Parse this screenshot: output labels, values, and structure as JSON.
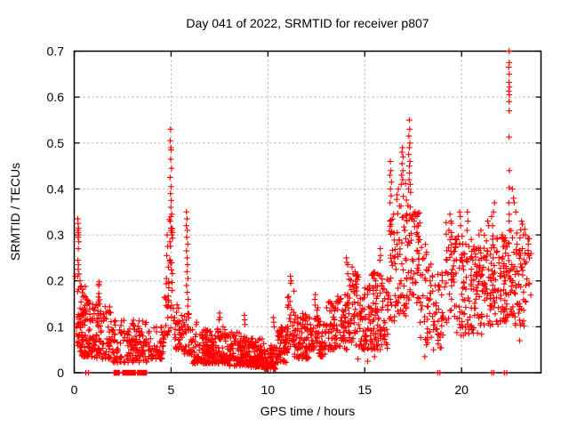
{
  "chart_data": {
    "type": "scatter",
    "title": "Day 041 of 2022, SRMTID for receiver p807",
    "xlabel": "GPS time / hours",
    "ylabel": "SRMTID / TECUs",
    "xlim": [
      0,
      24.1
    ],
    "ylim": [
      0,
      0.7
    ],
    "xticks": [
      {
        "v": 0,
        "label": "0"
      },
      {
        "v": 5,
        "label": "5"
      },
      {
        "v": 10,
        "label": "10"
      },
      {
        "v": 15,
        "label": "15"
      },
      {
        "v": 20,
        "label": "20"
      }
    ],
    "yticks": [
      {
        "v": 0,
        "label": "0"
      },
      {
        "v": 0.1,
        "label": "0.1"
      },
      {
        "v": 0.2,
        "label": "0.2"
      },
      {
        "v": 0.3,
        "label": "0.3"
      },
      {
        "v": 0.4,
        "label": "0.4"
      },
      {
        "v": 0.5,
        "label": "0.5"
      },
      {
        "v": 0.6,
        "label": "0.6"
      },
      {
        "v": 0.7,
        "label": "0.7"
      }
    ],
    "grid": true,
    "legend": "none",
    "marker": {
      "glyph": "+",
      "color": "#ff0000",
      "size": 7
    },
    "colors": {
      "points": "#ff0000",
      "border": "#000000",
      "grid": "#aaaaaa",
      "background": "#ffffff",
      "text": "#000000"
    },
    "series": [
      {
        "name": "SRMTID",
        "points": [
          [
            0.18,
            0.335
          ],
          [
            0.2,
            0.325
          ],
          [
            0.22,
            0.315
          ],
          [
            0.19,
            0.31
          ],
          [
            0.21,
            0.305
          ],
          [
            0.23,
            0.3
          ],
          [
            0.2,
            0.295
          ],
          [
            0.24,
            0.285
          ],
          [
            0.21,
            0.27
          ],
          [
            0.19,
            0.245
          ],
          [
            0.22,
            0.235
          ],
          [
            0.2,
            0.225
          ],
          [
            0.25,
            0.215
          ],
          [
            0.17,
            0.21
          ],
          [
            0.3,
            0.2
          ],
          [
            0.05,
            0.21
          ],
          [
            4.8,
            0.3
          ],
          [
            4.83,
            0.275
          ],
          [
            4.78,
            0.255
          ],
          [
            4.86,
            0.23
          ],
          [
            4.76,
            0.205
          ],
          [
            4.88,
            0.185
          ],
          [
            4.97,
            0.53
          ],
          [
            4.96,
            0.505
          ],
          [
            4.99,
            0.49
          ],
          [
            5.0,
            0.485
          ],
          [
            4.98,
            0.465
          ],
          [
            5.02,
            0.445
          ],
          [
            4.95,
            0.425
          ],
          [
            5.0,
            0.405
          ],
          [
            4.97,
            0.39
          ],
          [
            5.01,
            0.375
          ],
          [
            4.99,
            0.36
          ],
          [
            5.03,
            0.345
          ],
          [
            4.96,
            0.33
          ],
          [
            5.0,
            0.315
          ],
          [
            5.04,
            0.3
          ],
          [
            4.94,
            0.285
          ],
          [
            5.8,
            0.35
          ],
          [
            5.82,
            0.335
          ],
          [
            5.79,
            0.32
          ],
          [
            5.84,
            0.31
          ],
          [
            5.81,
            0.295
          ],
          [
            5.86,
            0.28
          ],
          [
            5.8,
            0.265
          ],
          [
            5.83,
            0.25
          ],
          [
            5.85,
            0.235
          ],
          [
            5.82,
            0.22
          ],
          [
            5.87,
            0.205
          ],
          [
            5.8,
            0.19
          ],
          [
            5.84,
            0.175
          ],
          [
            5.88,
            0.16
          ],
          [
            5.86,
            0.145
          ],
          [
            6.3,
            0.105
          ],
          [
            6.32,
            0.11
          ],
          [
            7.5,
            0.13
          ],
          [
            7.52,
            0.12
          ],
          [
            7.48,
            0.115
          ],
          [
            8.78,
            0.125
          ],
          [
            8.8,
            0.115
          ],
          [
            8.82,
            0.105
          ],
          [
            10.28,
            0.12
          ],
          [
            10.3,
            0.11
          ],
          [
            10.32,
            0.1
          ],
          [
            11.16,
            0.21
          ],
          [
            11.2,
            0.2
          ],
          [
            11.18,
            0.195
          ],
          [
            12.45,
            0.17
          ],
          [
            12.42,
            0.16
          ],
          [
            13.2,
            0.155
          ],
          [
            13.25,
            0.15
          ],
          [
            14.05,
            0.25
          ],
          [
            14.08,
            0.24
          ],
          [
            14.12,
            0.235
          ],
          [
            14.35,
            0.23
          ],
          [
            14.5,
            0.22
          ],
          [
            14.4,
            0.215
          ],
          [
            15.8,
            0.27
          ],
          [
            15.82,
            0.255
          ],
          [
            15.78,
            0.245
          ],
          [
            15.5,
            0.035
          ],
          [
            14.65,
            0.03
          ],
          [
            15.15,
            0.025
          ],
          [
            16.32,
            0.46
          ],
          [
            16.35,
            0.44
          ],
          [
            16.3,
            0.43
          ],
          [
            16.38,
            0.415
          ],
          [
            16.33,
            0.4
          ],
          [
            16.36,
            0.385
          ],
          [
            16.31,
            0.37
          ],
          [
            16.95,
            0.49
          ],
          [
            16.92,
            0.48
          ],
          [
            16.98,
            0.47
          ],
          [
            16.93,
            0.455
          ],
          [
            16.97,
            0.44
          ],
          [
            16.9,
            0.43
          ],
          [
            16.96,
            0.42
          ],
          [
            16.88,
            0.41
          ],
          [
            17.3,
            0.55
          ],
          [
            17.32,
            0.53
          ],
          [
            17.28,
            0.515
          ],
          [
            17.33,
            0.5
          ],
          [
            17.3,
            0.49
          ],
          [
            17.27,
            0.475
          ],
          [
            17.34,
            0.46
          ],
          [
            17.3,
            0.45
          ],
          [
            17.31,
            0.435
          ],
          [
            17.29,
            0.42
          ],
          [
            17.35,
            0.41
          ],
          [
            17.26,
            0.4
          ],
          [
            17.6,
            0.35
          ],
          [
            17.7,
            0.34
          ],
          [
            17.55,
            0.33
          ],
          [
            18.1,
            0.035
          ],
          [
            18.55,
            0.05
          ],
          [
            19.0,
            0.2
          ],
          [
            19.4,
            0.345
          ],
          [
            19.45,
            0.33
          ],
          [
            19.35,
            0.31
          ],
          [
            19.9,
            0.35
          ],
          [
            19.93,
            0.34
          ],
          [
            19.95,
            0.32
          ],
          [
            20.3,
            0.35
          ],
          [
            20.32,
            0.33
          ],
          [
            20.28,
            0.31
          ],
          [
            20.5,
            0.29
          ],
          [
            20.9,
            0.3
          ],
          [
            21.0,
            0.31
          ],
          [
            21.35,
            0.33
          ],
          [
            21.4,
            0.32
          ],
          [
            21.55,
            0.34
          ],
          [
            21.6,
            0.32
          ],
          [
            21.7,
            0.37
          ],
          [
            21.65,
            0.35
          ],
          [
            22.1,
            0.3
          ],
          [
            22.2,
            0.285
          ],
          [
            22.45,
            0.7
          ],
          [
            22.46,
            0.675
          ],
          [
            22.44,
            0.665
          ],
          [
            22.46,
            0.65
          ],
          [
            22.45,
            0.632
          ],
          [
            22.47,
            0.622
          ],
          [
            22.44,
            0.613
          ],
          [
            22.46,
            0.605
          ],
          [
            22.45,
            0.59
          ],
          [
            22.46,
            0.57
          ],
          [
            22.45,
            0.513
          ],
          [
            22.47,
            0.44
          ],
          [
            22.46,
            0.403
          ],
          [
            22.44,
            0.37
          ],
          [
            22.46,
            0.345
          ],
          [
            22.45,
            0.33
          ],
          [
            22.47,
            0.31
          ],
          [
            22.62,
            0.4
          ],
          [
            22.68,
            0.38
          ],
          [
            22.72,
            0.37
          ],
          [
            22.8,
            0.35
          ],
          [
            23.0,
            0.07
          ],
          [
            23.1,
            0.33
          ],
          [
            23.3,
            0.3
          ],
          [
            23.45,
            0.28
          ],
          [
            23.5,
            0.25
          ]
        ],
        "zero_value_runs": [
          {
            "from": 2.05,
            "to": 2.33,
            "step": 0.02
          },
          {
            "from": 2.5,
            "to": 3.17,
            "step": 0.02
          },
          {
            "from": 3.27,
            "to": 3.73,
            "step": 0.02
          }
        ],
        "zero_value_points": [
          0.6,
          0.74,
          18.77,
          18.88,
          21.55,
          21.66,
          22.21,
          22.33
        ],
        "dense_bands": [
          {
            "t0": 0.08,
            "t1": 0.35,
            "lo": 0.05,
            "hi": 0.2,
            "n": 22,
            "skew": 1.3
          },
          {
            "t0": 0.3,
            "t1": 1.0,
            "lo": 0.035,
            "hi": 0.16,
            "n": 100,
            "skew": 1.7
          },
          {
            "t0": 0.35,
            "t1": 0.65,
            "lo": 0.13,
            "hi": 0.19,
            "n": 10,
            "skew": 1.0
          },
          {
            "t0": 1.0,
            "t1": 1.95,
            "lo": 0.03,
            "hi": 0.15,
            "n": 85,
            "skew": 1.6
          },
          {
            "t0": 1.22,
            "t1": 1.38,
            "lo": 0.13,
            "hi": 0.21,
            "n": 10,
            "skew": 1.0
          },
          {
            "t0": 1.95,
            "t1": 3.8,
            "lo": 0.022,
            "hi": 0.115,
            "n": 150,
            "skew": 1.5
          },
          {
            "t0": 3.8,
            "t1": 4.65,
            "lo": 0.03,
            "hi": 0.1,
            "n": 55,
            "skew": 1.5
          },
          {
            "t0": 4.65,
            "t1": 5.1,
            "lo": 0.08,
            "hi": 0.2,
            "n": 28,
            "skew": 1.2
          },
          {
            "t0": 4.9,
            "t1": 5.08,
            "lo": 0.2,
            "hi": 0.34,
            "n": 14,
            "skew": 1.0
          },
          {
            "t0": 5.08,
            "t1": 5.65,
            "lo": 0.05,
            "hi": 0.16,
            "n": 40,
            "skew": 1.4
          },
          {
            "t0": 5.65,
            "t1": 6.05,
            "lo": 0.04,
            "hi": 0.13,
            "n": 35,
            "skew": 1.4
          },
          {
            "t0": 6.05,
            "t1": 7.0,
            "lo": 0.02,
            "hi": 0.095,
            "n": 105,
            "skew": 1.6
          },
          {
            "t0": 7.0,
            "t1": 8.0,
            "lo": 0.02,
            "hi": 0.1,
            "n": 115,
            "skew": 1.6
          },
          {
            "t0": 8.0,
            "t1": 9.0,
            "lo": 0.015,
            "hi": 0.09,
            "n": 115,
            "skew": 1.6
          },
          {
            "t0": 9.0,
            "t1": 9.8,
            "lo": 0.012,
            "hi": 0.075,
            "n": 105,
            "skew": 1.6
          },
          {
            "t0": 9.8,
            "t1": 10.45,
            "lo": 0.008,
            "hi": 0.06,
            "n": 85,
            "skew": 1.5
          },
          {
            "t0": 10.45,
            "t1": 11.0,
            "lo": 0.02,
            "hi": 0.1,
            "n": 65,
            "skew": 1.4
          },
          {
            "t0": 11.0,
            "t1": 11.35,
            "lo": 0.05,
            "hi": 0.18,
            "n": 30,
            "skew": 1.1
          },
          {
            "t0": 11.35,
            "t1": 12.25,
            "lo": 0.03,
            "hi": 0.13,
            "n": 90,
            "skew": 1.4
          },
          {
            "t0": 12.25,
            "t1": 12.6,
            "lo": 0.05,
            "hi": 0.155,
            "n": 32,
            "skew": 1.1
          },
          {
            "t0": 12.6,
            "t1": 13.0,
            "lo": 0.035,
            "hi": 0.12,
            "n": 40,
            "skew": 1.4
          },
          {
            "t0": 13.0,
            "t1": 13.45,
            "lo": 0.05,
            "hi": 0.155,
            "n": 40,
            "skew": 1.2
          },
          {
            "t0": 13.45,
            "t1": 14.1,
            "lo": 0.05,
            "hi": 0.17,
            "n": 55,
            "skew": 1.3
          },
          {
            "t0": 14.1,
            "t1": 14.7,
            "lo": 0.06,
            "hi": 0.22,
            "n": 60,
            "skew": 1.1
          },
          {
            "t0": 14.7,
            "t1": 15.35,
            "lo": 0.05,
            "hi": 0.19,
            "n": 65,
            "skew": 1.3
          },
          {
            "t0": 15.35,
            "t1": 16.2,
            "lo": 0.05,
            "hi": 0.22,
            "n": 90,
            "skew": 1.3
          },
          {
            "t0": 16.2,
            "t1": 16.6,
            "lo": 0.1,
            "hi": 0.36,
            "n": 35,
            "skew": 1.1
          },
          {
            "t0": 16.6,
            "t1": 17.15,
            "lo": 0.12,
            "hi": 0.42,
            "n": 50,
            "skew": 1.1
          },
          {
            "t0": 17.15,
            "t1": 17.45,
            "lo": 0.15,
            "hi": 0.4,
            "n": 28,
            "skew": 1.0
          },
          {
            "t0": 17.45,
            "t1": 17.85,
            "lo": 0.15,
            "hi": 0.36,
            "n": 38,
            "skew": 1.1
          },
          {
            "t0": 17.85,
            "t1": 18.5,
            "lo": 0.06,
            "hi": 0.28,
            "n": 45,
            "skew": 1.25
          },
          {
            "t0": 18.5,
            "t1": 19.2,
            "lo": 0.05,
            "hi": 0.22,
            "n": 40,
            "skew": 1.25
          },
          {
            "t0": 19.2,
            "t1": 19.65,
            "lo": 0.1,
            "hi": 0.33,
            "n": 40,
            "skew": 1.05
          },
          {
            "t0": 19.65,
            "t1": 20.15,
            "lo": 0.08,
            "hi": 0.3,
            "n": 45,
            "skew": 1.15
          },
          {
            "t0": 20.15,
            "t1": 21.1,
            "lo": 0.08,
            "hi": 0.28,
            "n": 90,
            "skew": 1.15
          },
          {
            "t0": 21.1,
            "t1": 21.85,
            "lo": 0.1,
            "hi": 0.3,
            "n": 70,
            "skew": 1.1
          },
          {
            "t0": 21.85,
            "t1": 22.35,
            "lo": 0.1,
            "hi": 0.3,
            "n": 55,
            "skew": 1.1
          },
          {
            "t0": 22.35,
            "t1": 22.55,
            "lo": 0.12,
            "hi": 0.3,
            "n": 15,
            "skew": 1.0
          },
          {
            "t0": 22.55,
            "t1": 23.3,
            "lo": 0.1,
            "hi": 0.33,
            "n": 70,
            "skew": 1.2
          },
          {
            "t0": 23.3,
            "t1": 23.6,
            "lo": 0.15,
            "hi": 0.3,
            "n": 14,
            "skew": 1.0
          }
        ]
      }
    ]
  }
}
